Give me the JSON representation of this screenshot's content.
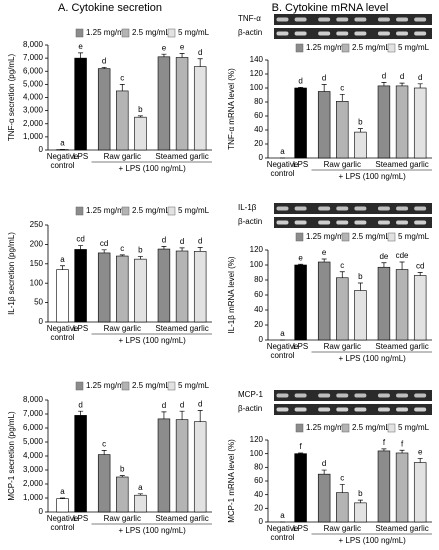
{
  "chart_data": [
    {
      "type": "bar",
      "title": "A. Cytokine secretion",
      "ylabel": "TNF-α secretion (pg/mL)",
      "ylim": [
        0,
        8000
      ],
      "yticks": [
        0,
        {
          "value": 1000,
          "label": "1,000"
        },
        {
          "value": 2000,
          "label": "2,000"
        },
        {
          "value": 3000,
          "label": "3,000"
        },
        {
          "value": 4000,
          "label": "4,000"
        },
        {
          "value": 5000,
          "label": "5,000"
        },
        {
          "value": 6000,
          "label": "6,000"
        },
        {
          "value": 7000,
          "label": "7,000"
        },
        {
          "value": 8000,
          "label": "8,000"
        }
      ],
      "groups": [
        "Negative control",
        "LPS",
        "Raw garlic",
        "Steamed garlic"
      ],
      "group_note": "+ LPS (100 ng/mL)",
      "legend": [
        {
          "name": "1.25 mg/mL",
          "color": "#8c8c8c"
        },
        {
          "name": "2.5 mg/mL",
          "color": "#b4b4b4"
        },
        {
          "name": "5 mg/mL",
          "color": "#e2e2e2"
        }
      ],
      "colors": [
        "#ffffff",
        "#000000",
        "#8c8c8c",
        "#b4b4b4",
        "#e2e2e2",
        "#8c8c8c",
        "#b4b4b4",
        "#e2e2e2"
      ],
      "values": [
        30,
        7000,
        6200,
        4500,
        2500,
        7100,
        7050,
        6350
      ],
      "errors": [
        10,
        400,
        100,
        500,
        100,
        200,
        300,
        600
      ],
      "letters": [
        "a",
        "e",
        "d",
        "c",
        "b",
        "e",
        "e",
        "d"
      ]
    },
    {
      "type": "bar",
      "ylabel": "IL-1β secretion (pg/mL)",
      "ylim": [
        0,
        250
      ],
      "yticks": [
        0,
        50,
        100,
        150,
        200,
        250
      ],
      "groups": [
        "Negative control",
        "LPS",
        "Raw garlic",
        "Steamed garlic"
      ],
      "group_note": "+ LPS (100 ng/mL)",
      "legend": [
        {
          "name": "1.25 mg/mL",
          "color": "#8c8c8c"
        },
        {
          "name": "2.5 mg/mL",
          "color": "#b4b4b4"
        },
        {
          "name": "5 mg/mL",
          "color": "#e2e2e2"
        }
      ],
      "colors": [
        "#ffffff",
        "#000000",
        "#8c8c8c",
        "#b4b4b4",
        "#e2e2e2",
        "#8c8c8c",
        "#b4b4b4",
        "#e2e2e2"
      ],
      "values": [
        135,
        187,
        178,
        170,
        162,
        188,
        183,
        182
      ],
      "errors": [
        10,
        10,
        8,
        3,
        7,
        7,
        8,
        10
      ],
      "letters": [
        "a",
        "cd",
        "cd",
        "c",
        "b",
        "d",
        "d",
        "d"
      ]
    },
    {
      "type": "bar",
      "ylabel": "MCP-1 secretion (pg/mL)",
      "ylim": [
        0,
        8000
      ],
      "yticks": [
        0,
        {
          "value": 1000,
          "label": "1,000"
        },
        {
          "value": 2000,
          "label": "2,000"
        },
        {
          "value": 3000,
          "label": "3,000"
        },
        {
          "value": 4000,
          "label": "4,000"
        },
        {
          "value": 5000,
          "label": "5,000"
        },
        {
          "value": 6000,
          "label": "6,000"
        },
        {
          "value": 7000,
          "label": "7,000"
        },
        {
          "value": 8000,
          "label": "8,000"
        }
      ],
      "groups": [
        "Negative control",
        "LPS",
        "Raw garlic",
        "Steamed garlic"
      ],
      "group_note": "+ LPS (100 ng/mL)",
      "legend": [
        {
          "name": "1.25 mg/mL",
          "color": "#8c8c8c"
        },
        {
          "name": "2.5 mg/mL",
          "color": "#b4b4b4"
        },
        {
          "name": "5 mg/mL",
          "color": "#e2e2e2"
        }
      ],
      "colors": [
        "#ffffff",
        "#000000",
        "#8c8c8c",
        "#b4b4b4",
        "#e2e2e2",
        "#8c8c8c",
        "#b4b4b4",
        "#e2e2e2"
      ],
      "values": [
        950,
        6900,
        4100,
        2500,
        1200,
        6650,
        6600,
        6450
      ],
      "errors": [
        50,
        300,
        300,
        100,
        100,
        500,
        600,
        800
      ],
      "letters": [
        "a",
        "d",
        "c",
        "b",
        "a",
        "d",
        "d",
        "d"
      ]
    },
    {
      "type": "bar",
      "title": "B. Cytokine mRNA level",
      "gel_labels": [
        "TNF-α",
        "β-actin"
      ],
      "ylabel": "TNF-α mRNA level (%)",
      "ylim": [
        0,
        140
      ],
      "yticks": [
        0,
        20,
        40,
        60,
        80,
        100,
        120,
        140
      ],
      "groups": [
        "Negative control",
        "LPS",
        "Raw garlic",
        "Steamed garlic"
      ],
      "group_note": "+ LPS (100 ng/mL)",
      "legend": [
        {
          "name": "1.25 mg/mL",
          "color": "#8c8c8c"
        },
        {
          "name": "2.5 mg/mL",
          "color": "#b4b4b4"
        },
        {
          "name": "5 mg/mL",
          "color": "#e2e2e2"
        }
      ],
      "colors": [
        "#ffffff",
        "#000000",
        "#8c8c8c",
        "#b4b4b4",
        "#e2e2e2",
        "#8c8c8c",
        "#b4b4b4",
        "#e2e2e2"
      ],
      "values": [
        0,
        100,
        95,
        81,
        37,
        103,
        103,
        100
      ],
      "errors": [
        0,
        1,
        10,
        10,
        5,
        5,
        4,
        6
      ],
      "letters": [
        "a",
        "d",
        "d",
        "c",
        "b",
        "d",
        "d",
        "d"
      ]
    },
    {
      "type": "bar",
      "gel_labels": [
        "IL-1β",
        "β-actin"
      ],
      "ylabel": "IL-1β mRNA level (%)",
      "ylim": [
        0,
        120
      ],
      "yticks": [
        0,
        20,
        40,
        60,
        80,
        100,
        120
      ],
      "groups": [
        "Negative control",
        "LPS",
        "Raw garlic",
        "Steamed garlic"
      ],
      "group_note": "+ LPS (100 ng/mL)",
      "legend": [
        {
          "name": "1.25 mg/mL",
          "color": "#8c8c8c"
        },
        {
          "name": "2.5 mg/mL",
          "color": "#b4b4b4"
        },
        {
          "name": "5 mg/mL",
          "color": "#e2e2e2"
        }
      ],
      "colors": [
        "#ffffff",
        "#000000",
        "#8c8c8c",
        "#b4b4b4",
        "#e2e2e2",
        "#8c8c8c",
        "#b4b4b4",
        "#e2e2e2"
      ],
      "values": [
        0,
        100,
        104,
        83,
        66,
        97,
        94,
        86
      ],
      "errors": [
        0,
        1,
        4,
        8,
        10,
        6,
        10,
        4
      ],
      "letters": [
        "a",
        "e",
        "e",
        "c",
        "b",
        "de",
        "cde",
        "cd"
      ]
    },
    {
      "type": "bar",
      "gel_labels": [
        "MCP-1",
        "β-actin"
      ],
      "ylabel": "MCP-1 mRNA level (%)",
      "ylim": [
        0,
        120
      ],
      "yticks": [
        0,
        20,
        40,
        60,
        80,
        100,
        120
      ],
      "groups": [
        "Negative control",
        "LPS",
        "Raw garlic",
        "Steamed garlic"
      ],
      "group_note": "+ LPS (100 ng/mL)",
      "legend": [
        {
          "name": "1.25 mg/mL",
          "color": "#8c8c8c"
        },
        {
          "name": "2.5 mg/mL",
          "color": "#b4b4b4"
        },
        {
          "name": "5 mg/mL",
          "color": "#e2e2e2"
        }
      ],
      "colors": [
        "#ffffff",
        "#000000",
        "#8c8c8c",
        "#b4b4b4",
        "#e2e2e2",
        "#8c8c8c",
        "#b4b4b4",
        "#e2e2e2"
      ],
      "values": [
        0,
        100,
        70,
        43,
        28,
        104,
        101,
        87
      ],
      "errors": [
        0,
        1,
        6,
        12,
        4,
        3,
        4,
        6
      ],
      "letters": [
        "a",
        "f",
        "d",
        "c",
        "b",
        "f",
        "f",
        "e"
      ]
    }
  ]
}
